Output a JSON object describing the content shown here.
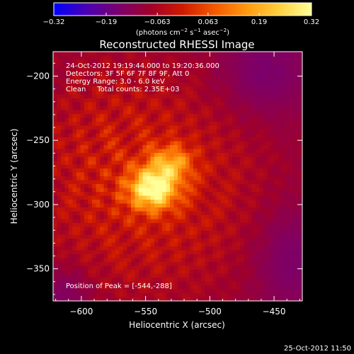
{
  "chart_data": {
    "type": "heatmap",
    "title": "Reconstructed RHESSI Image",
    "xlabel": "Heliocentric X (arcsec)",
    "ylabel": "Heliocentric Y (arcsec)",
    "xlim": [
      -622,
      -428
    ],
    "ylim": [
      -375,
      -181
    ],
    "x_ticks": [
      -600,
      -550,
      -500,
      -450
    ],
    "x_tick_labels": [
      "−600",
      "−550",
      "−500",
      "−450"
    ],
    "y_ticks": [
      -200,
      -250,
      -300,
      -350
    ],
    "y_tick_labels": [
      "−200",
      "−250",
      "−300",
      "−350"
    ],
    "annotations": [
      "24-Oct-2012 19:19:44.000 to 19:20:36.000",
      "Detectors: 3F 5F 6F 7F 8F 9F, Att 0",
      "Energy Range: 3.0 - 6.0 keV",
      "Clean     Total counts: 2.35E+03"
    ],
    "peak_label": "Position of Peak = [-544,-288]",
    "peak": {
      "x": -544,
      "y": -288
    },
    "colorbar": {
      "range": [
        -0.32,
        0.32
      ],
      "ticks": [
        -0.32,
        -0.19,
        -0.063,
        0.063,
        0.19,
        0.32
      ],
      "tick_labels": [
        "−0.32",
        "−0.19",
        "−0.063",
        "0.063",
        "0.19",
        "0.32"
      ],
      "label_prefix": "(photons cm",
      "label_exp1": "−2",
      "label_mid": " s",
      "label_exp2": "−1",
      "label_mid2": " asec",
      "label_exp3": "−2",
      "label_suffix": ")",
      "colormap": [
        "#0000ff",
        "#4a00b4",
        "#7a006e",
        "#a0002a",
        "#d01a00",
        "#f45a00",
        "#ff9a10",
        "#ffd040",
        "#ffff99"
      ]
    },
    "footer_timestamp": "25-Oct-2012 11:50"
  }
}
